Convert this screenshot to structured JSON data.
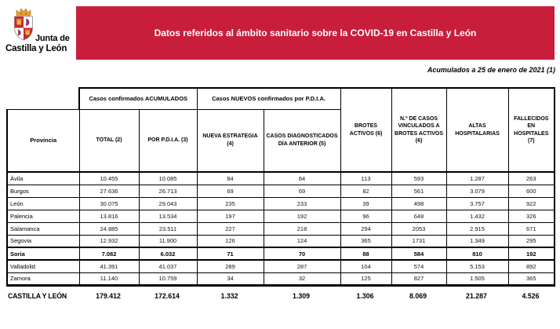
{
  "logo": {
    "line1": "Junta de",
    "line2": "Castilla y León"
  },
  "banner": {
    "title": "Datos referidos al ámbito sanitario sobre la COVID-19 en Castilla y León",
    "bg_color": "#C81E3C"
  },
  "subtitle": "Acumulados a 25 de enero de 2021 (1)",
  "table": {
    "corner_label": "Provincia",
    "groups": [
      {
        "label": "Casos confirmados ACUMULADOS"
      },
      {
        "label": "Casos NUEVOS confirmados por P.D.I.A."
      }
    ],
    "columns": [
      "TOTAL (2)",
      "POR P.D.I.A. (3)",
      "NUEVA ESTRATEGIA (4)",
      "CASOS DIAGNOSTICADOS DÍA ANTERIOR (5)",
      "BROTES ACTIVOS (6)",
      "N.º DE CASOS VINCULADOS A BROTES ACTIVOS (6)",
      "ALTAS HOSPITALARIAS",
      "FALLECIDOS EN HOSPITALES (7)"
    ],
    "rows": [
      {
        "province": "Ávila",
        "bold": false,
        "values": [
          "10.455",
          "10.085",
          "84",
          "84",
          "113",
          "593",
          "1.287",
          "263"
        ]
      },
      {
        "province": "Burgos",
        "bold": false,
        "values": [
          "27.636",
          "26.713",
          "69",
          "69",
          "82",
          "561",
          "3.079",
          "600"
        ]
      },
      {
        "province": "León",
        "bold": false,
        "values": [
          "30.075",
          "29.043",
          "235",
          "233",
          "39",
          "498",
          "3.757",
          "922"
        ]
      },
      {
        "province": "Palencia",
        "bold": false,
        "values": [
          "13.816",
          "13.534",
          "197",
          "192",
          "96",
          "648",
          "1.432",
          "326"
        ]
      },
      {
        "province": "Salamanca",
        "bold": false,
        "values": [
          "24.885",
          "23.511",
          "227",
          "218",
          "294",
          "2053",
          "2.915",
          "671"
        ]
      },
      {
        "province": "Segovia",
        "bold": false,
        "values": [
          "12.932",
          "11.900",
          "126",
          "124",
          "365",
          "1731",
          "1.349",
          "295"
        ]
      },
      {
        "province": "Soria",
        "bold": true,
        "values": [
          "7.082",
          "6.032",
          "71",
          "70",
          "88",
          "584",
          "810",
          "192"
        ]
      },
      {
        "province": "Valladolid",
        "bold": false,
        "values": [
          "41.391",
          "41.037",
          "289",
          "287",
          "104",
          "574",
          "5.153",
          "892"
        ]
      },
      {
        "province": "Zamora",
        "bold": false,
        "values": [
          "11.140",
          "10.759",
          "34",
          "32",
          "125",
          "827",
          "1.505",
          "365"
        ]
      }
    ],
    "total": {
      "label": "CASTILLA Y LEÓN",
      "values": [
        "179.412",
        "172.614",
        "1.332",
        "1.309",
        "1.306",
        "8.069",
        "21.287",
        "4.526"
      ]
    }
  },
  "colors": {
    "banner_red": "#C81E3C",
    "shield_red": "#C22A35",
    "crown_gold": "#E3A433",
    "lion_purple": "#8C3A54"
  }
}
